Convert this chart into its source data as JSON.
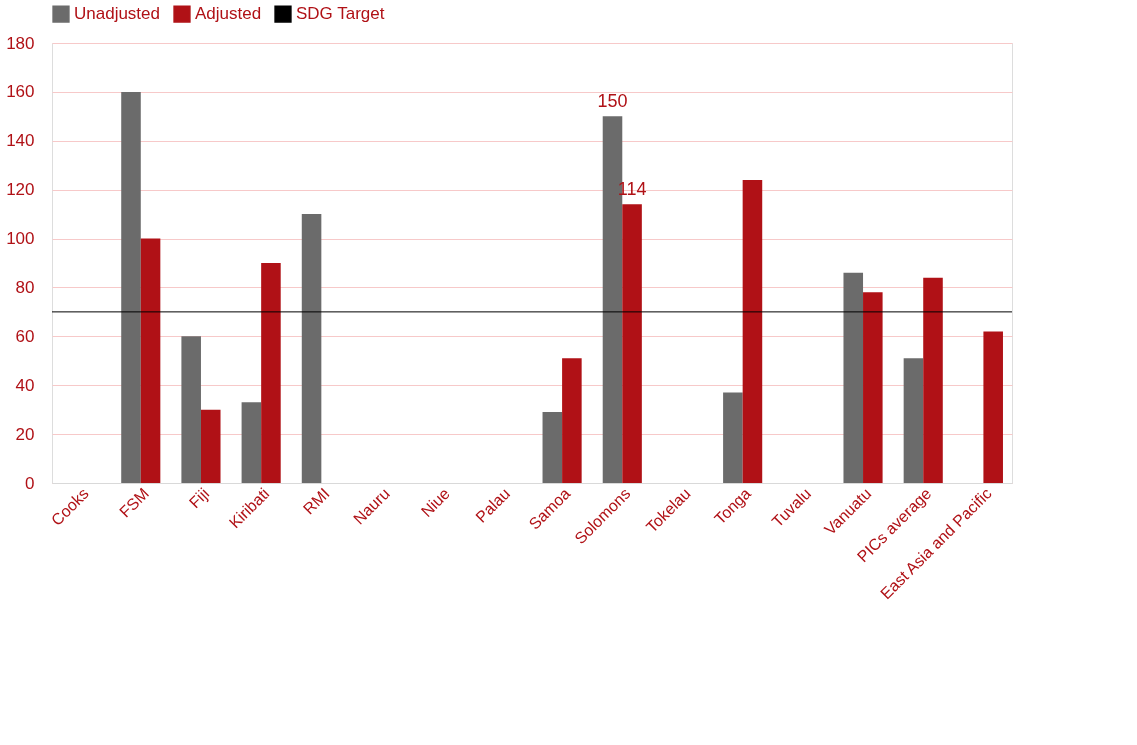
{
  "chart_data": {
    "type": "bar",
    "categories": [
      "Cooks",
      "FSM",
      "Fiji",
      "Kiribati",
      "RMI",
      "Nauru",
      "Niue",
      "Palau",
      "Samoa",
      "Solomons",
      "Tokelau",
      "Tonga",
      "Tuvalu",
      "Vanuatu",
      "PICs average",
      "East Asia and Pacific"
    ],
    "series": [
      {
        "name": "Unadjusted",
        "color": "#6b6b6b",
        "values": [
          null,
          160,
          60,
          33,
          110,
          null,
          null,
          null,
          29,
          150,
          null,
          37,
          null,
          86,
          51,
          null
        ],
        "value_labels": [
          null,
          null,
          null,
          null,
          null,
          null,
          null,
          null,
          null,
          "150",
          null,
          null,
          null,
          null,
          null,
          null
        ]
      },
      {
        "name": "Adjusted",
        "color": "#b01116",
        "values": [
          null,
          100,
          30,
          90,
          null,
          null,
          null,
          null,
          51,
          114,
          null,
          124,
          null,
          78,
          84,
          62
        ],
        "value_labels": [
          null,
          null,
          null,
          null,
          null,
          null,
          null,
          null,
          null,
          "114",
          null,
          null,
          null,
          null,
          null,
          null
        ]
      }
    ],
    "ref_lines": [
      {
        "axis": "y",
        "value": 70,
        "label": "SDG Target",
        "color": "#000000"
      }
    ],
    "ylim": [
      0,
      180
    ],
    "yticks": [
      0,
      20,
      40,
      60,
      80,
      100,
      120,
      140,
      160,
      180
    ],
    "grid": "y",
    "legend": "top"
  }
}
